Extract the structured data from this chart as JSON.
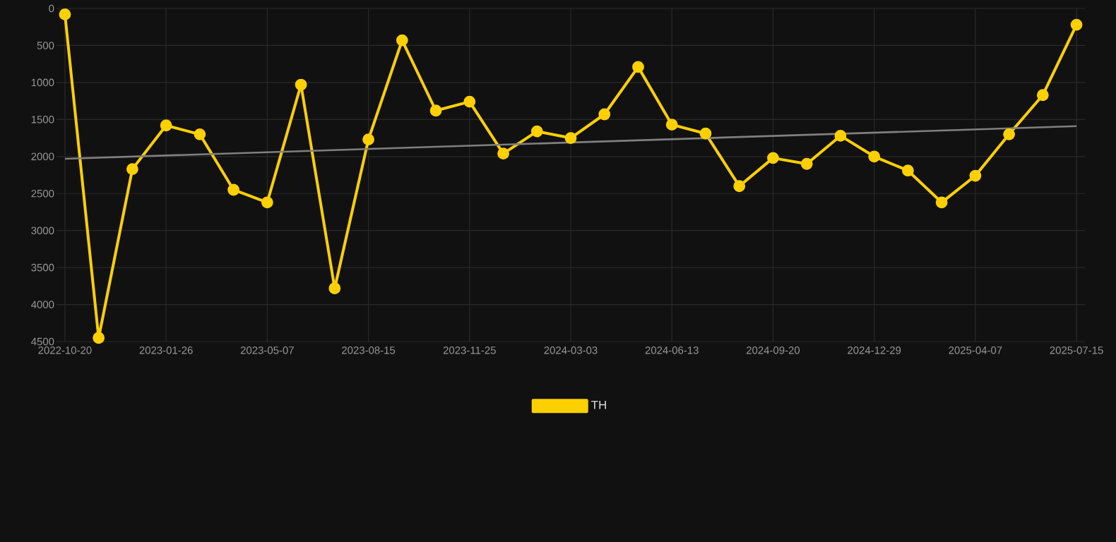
{
  "chart_data": {
    "type": "line",
    "categories": [
      "2022-10-20",
      null,
      null,
      "2023-01-26",
      null,
      null,
      "2023-05-07",
      null,
      null,
      "2023-08-15",
      null,
      null,
      "2023-11-25",
      null,
      null,
      "2024-03-03",
      null,
      null,
      "2024-06-13",
      null,
      null,
      "2024-09-20",
      null,
      null,
      "2024-12-29",
      null,
      null,
      "2025-04-07",
      null,
      null,
      "2025-07-15"
    ],
    "series": [
      {
        "name": "TH",
        "color": "#ffd000",
        "values": [
          80,
          4450,
          2170,
          1580,
          1700,
          2450,
          2620,
          1030,
          3780,
          1770,
          430,
          1380,
          1260,
          1960,
          1660,
          1750,
          1430,
          790,
          1570,
          1690,
          2400,
          2020,
          2100,
          1720,
          2000,
          2190,
          2620,
          2260,
          1700,
          1170,
          220
        ]
      },
      {
        "type": "line",
        "color": "#808080",
        "marker": "none",
        "values": [
          2030,
          null,
          null,
          null,
          null,
          null,
          null,
          null,
          null,
          null,
          null,
          null,
          null,
          null,
          null,
          null,
          null,
          null,
          null,
          null,
          null,
          null,
          null,
          null,
          null,
          null,
          null,
          null,
          null,
          null,
          1590
        ]
      }
    ],
    "ylim": [
      4500,
      0
    ],
    "yticks": [
      0,
      500,
      1000,
      1500,
      2000,
      2500,
      3000,
      3500,
      4000,
      4500
    ],
    "grid": true,
    "legend": "bottom",
    "marker": "circle",
    "line_style": "solid"
  }
}
